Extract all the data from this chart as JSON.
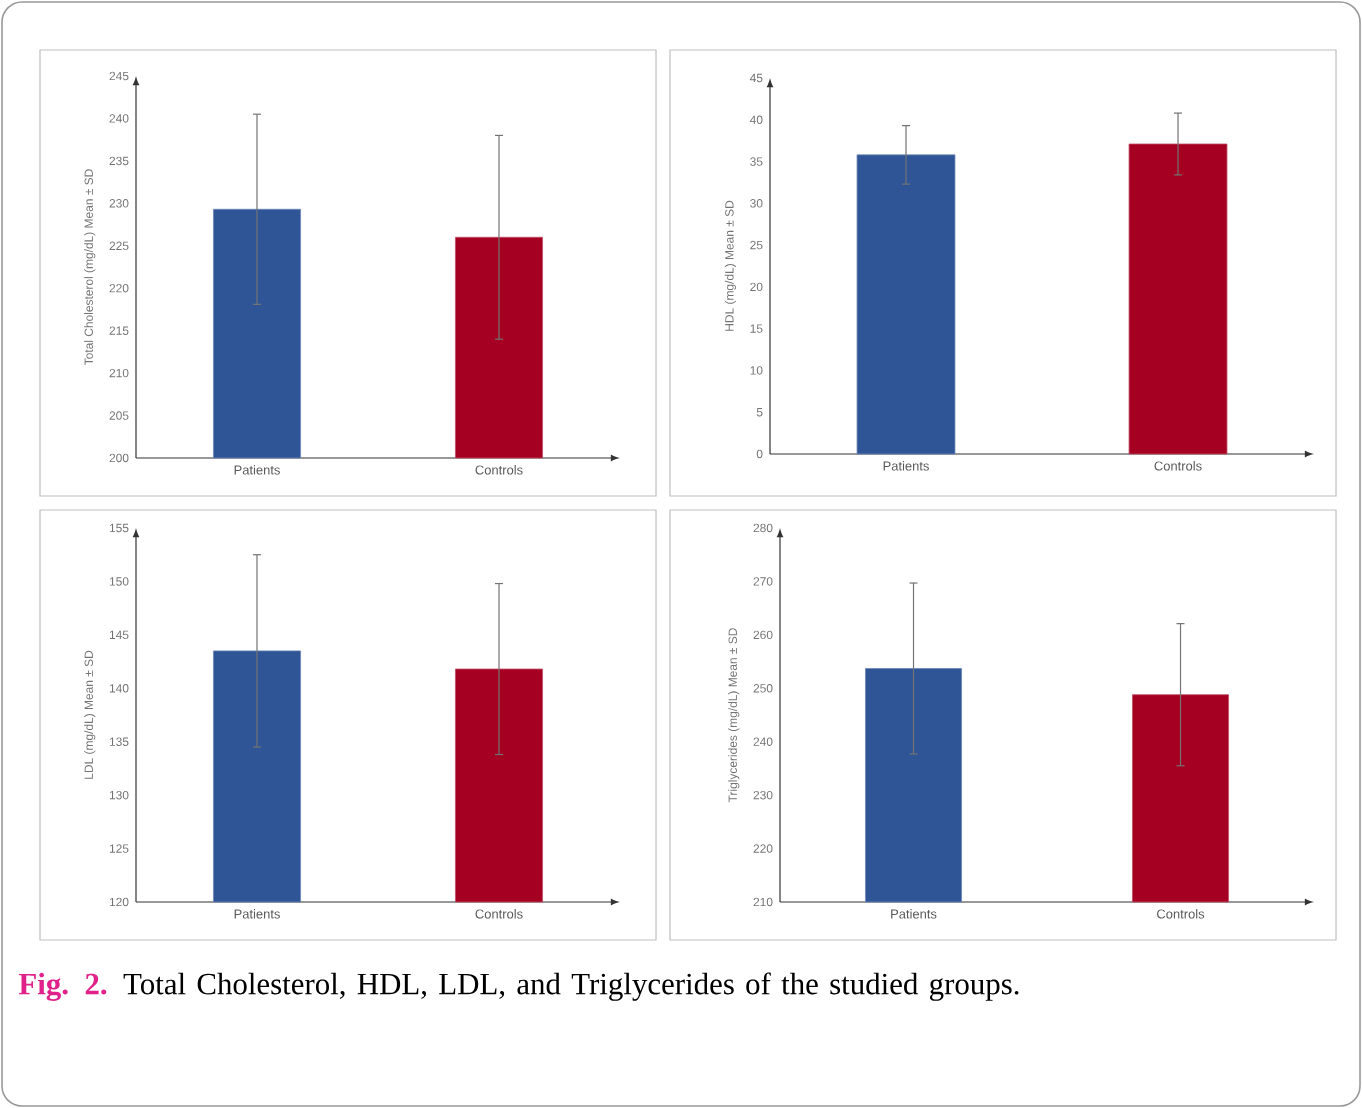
{
  "chart_data": [
    {
      "type": "bar",
      "ylabel": "Total Cholesterol (mg/dL) Mean ± SD",
      "categories": [
        "Patients",
        "Controls"
      ],
      "values": [
        229.3,
        226
      ],
      "colors": [
        "#2f5597",
        "#a50021"
      ],
      "errors": [
        11.2,
        12
      ],
      "ylim": [
        200,
        245
      ],
      "yticks": [
        200,
        205,
        210,
        215,
        220,
        225,
        230,
        235,
        240,
        245
      ]
    },
    {
      "type": "bar",
      "ylabel": "HDL (mg/dL) Mean ± SD",
      "categories": [
        "Patients",
        "Controls"
      ],
      "values": [
        35.8,
        37.1
      ],
      "colors": [
        "#2f5597",
        "#a50021"
      ],
      "errors": [
        3.5,
        3.7
      ],
      "ylim": [
        0,
        45
      ],
      "yticks": [
        0,
        5,
        10,
        15,
        20,
        25,
        30,
        35,
        40,
        45
      ]
    },
    {
      "type": "bar",
      "ylabel": "LDL (mg/dL) Mean ± SD",
      "categories": [
        "Patients",
        "Controls"
      ],
      "values": [
        143.5,
        141.8
      ],
      "colors": [
        "#2f5597",
        "#a50021"
      ],
      "errors": [
        9,
        8
      ],
      "ylim": [
        120,
        155
      ],
      "yticks": [
        120,
        125,
        130,
        135,
        140,
        145,
        150,
        155
      ]
    },
    {
      "type": "bar",
      "ylabel": "Triglycerides (mg/dL) Mean ± SD",
      "categories": [
        "Patients",
        "Controls"
      ],
      "values": [
        253.7,
        248.8
      ],
      "colors": [
        "#2f5597",
        "#a50021"
      ],
      "errors": [
        16,
        13.3
      ],
      "ylim": [
        210,
        280
      ],
      "yticks": [
        210,
        220,
        230,
        240,
        250,
        260,
        270,
        280
      ],
      "annotations": [
        "Fig. 2.",
        "Total Cholesterol, HDL, LDL, and Triglycerides of the studied groups."
      ]
    }
  ]
}
